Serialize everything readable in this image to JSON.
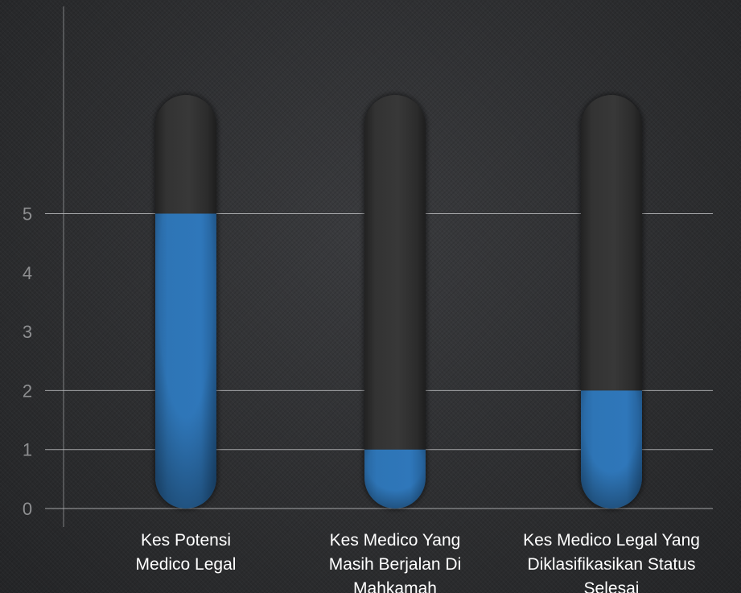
{
  "chart_data": {
    "type": "bar",
    "title": "",
    "xlabel": "",
    "ylabel": "",
    "categories": [
      [
        "Kes Potensi",
        "Medico Legal"
      ],
      [
        "Kes Medico Yang",
        "Masih Berjalan Di",
        "Mahkamah"
      ],
      [
        "Kes Medico Legal Yang",
        "Diklasifikasikan Status",
        "Selesai"
      ]
    ],
    "values": [
      5,
      1,
      2
    ],
    "y_ticks": [
      "0",
      "1",
      "2",
      "3",
      "4",
      "5"
    ],
    "ylim": [
      0,
      7
    ],
    "grid_values": [
      0,
      1,
      2,
      5
    ],
    "colors": {
      "fill": "#2e75b6",
      "track": "#353535",
      "grid": "#b9babc",
      "tick_text": "#8e8f91",
      "category_text": "#ffffff"
    }
  }
}
